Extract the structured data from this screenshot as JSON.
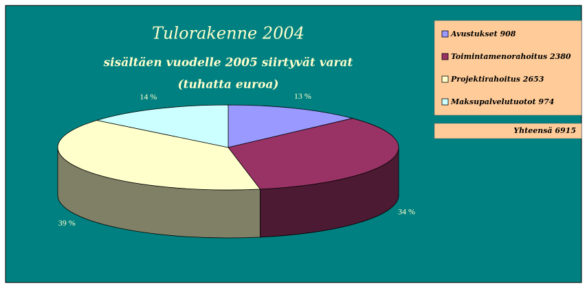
{
  "chart_data": {
    "type": "pie3d",
    "title": "Tulorakenne 2004",
    "subtitle": "sisältäen vuodelle 2005 siirtyvät varat",
    "unit_note": "(tuhatta euroa)",
    "categories": [
      "Avustukset 908",
      "Toimintamenorahoitus 2380",
      "Projektirahoitus 2653",
      "Maksupalvelutuotot 974"
    ],
    "values": [
      13,
      34,
      39,
      14
    ],
    "value_labels": [
      "13 %",
      "34 %",
      "39 %",
      "14 %"
    ],
    "colors": [
      "#9999ff",
      "#993366",
      "#ffffcc",
      "#ccffff"
    ],
    "side_colors": [
      "#5c5c99",
      "#4d1a33",
      "#808066",
      "#669999"
    ],
    "total_label": "Yhteensä 6915",
    "legend": "right"
  }
}
